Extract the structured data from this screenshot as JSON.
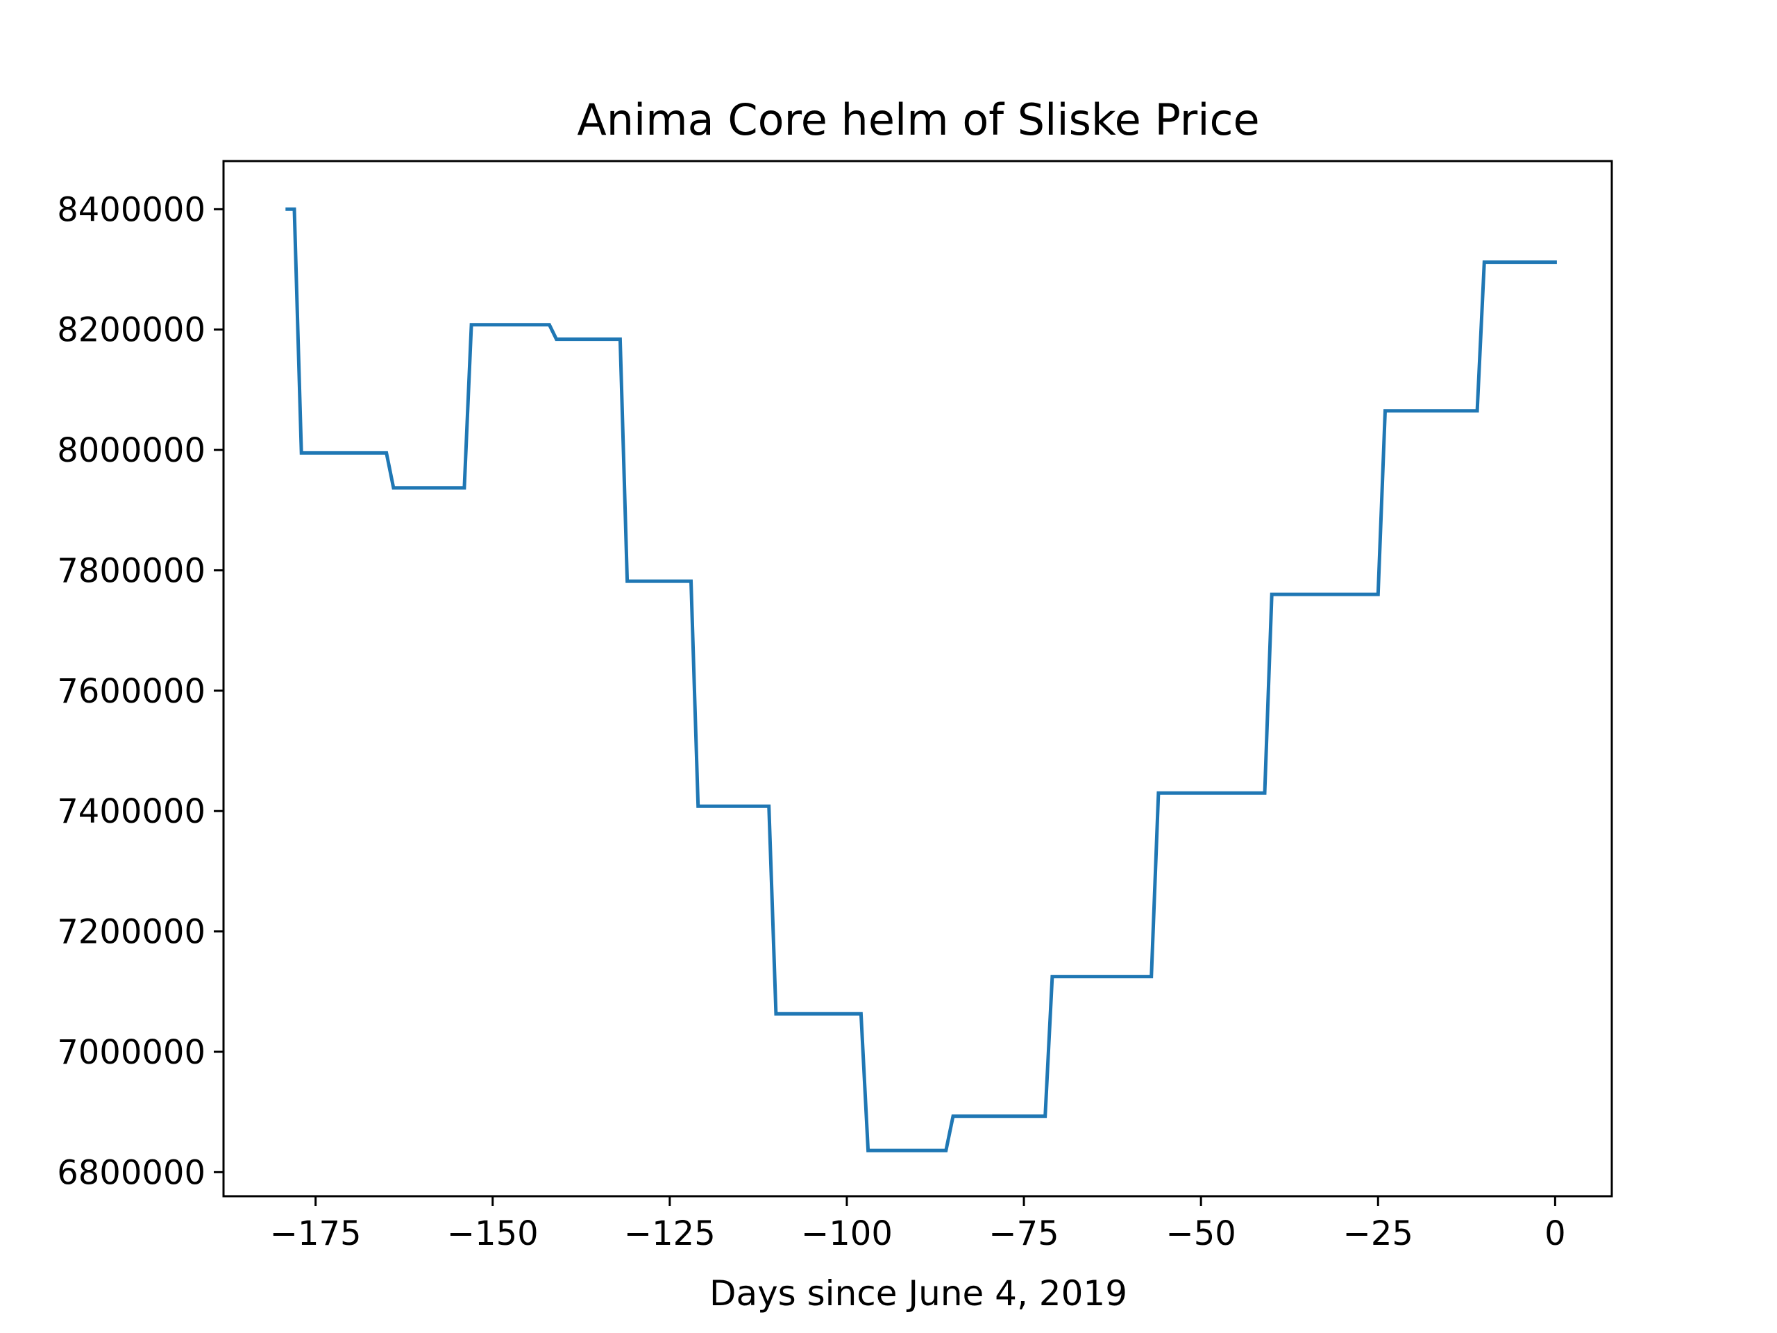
{
  "chart_data": {
    "type": "line",
    "title": "Anima Core helm of Sliske Price",
    "xlabel": "Days since June 4, 2019",
    "ylabel": "",
    "xlim": [
      -188,
      8
    ],
    "ylim": [
      6760000,
      8480000
    ],
    "x_ticks": [
      -175,
      -150,
      -125,
      -100,
      -75,
      -50,
      -25,
      0
    ],
    "x_tick_labels": [
      "−175",
      "−150",
      "−125",
      "−100",
      "−75",
      "−50",
      "−25",
      "0"
    ],
    "y_ticks": [
      6800000,
      7000000,
      7200000,
      7400000,
      7600000,
      7800000,
      8000000,
      8200000,
      8400000
    ],
    "y_tick_labels": [
      "6800000",
      "7000000",
      "7200000",
      "7400000",
      "7600000",
      "7800000",
      "8000000",
      "8200000",
      "8400000"
    ],
    "grid": false,
    "legend": "none",
    "series": [
      {
        "color": "#1f77b4",
        "x": [
          -179,
          -178,
          -177,
          -165,
          -164,
          -154,
          -153,
          -142,
          -141,
          -132,
          -131,
          -122,
          -121,
          -111,
          -110,
          -98,
          -97,
          -86,
          -85,
          -72,
          -71,
          -57,
          -56,
          -41,
          -40,
          -25,
          -24,
          -11,
          -10,
          0
        ],
        "y": [
          8400000,
          8400000,
          7995000,
          7995000,
          7937000,
          7937000,
          8208000,
          8208000,
          8184000,
          8184000,
          7782000,
          7782000,
          7408000,
          7408000,
          7063000,
          7063000,
          6836000,
          6836000,
          6893000,
          6893000,
          7125000,
          7125000,
          7430000,
          7430000,
          7760000,
          7760000,
          8065000,
          8065000,
          8312000,
          8312000
        ]
      }
    ]
  }
}
